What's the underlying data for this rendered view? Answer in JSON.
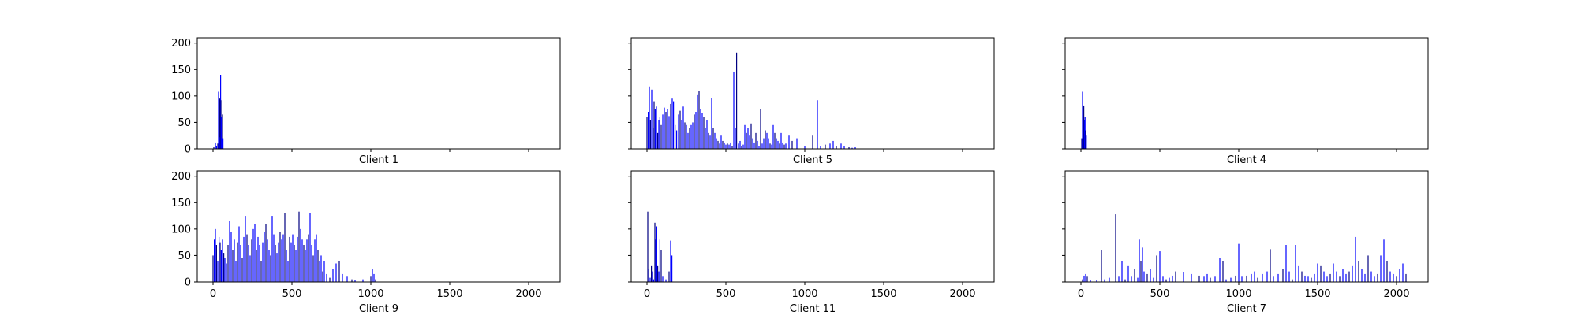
{
  "chart_data": [
    {
      "type": "bar",
      "xlabel": "Client 1",
      "xlim": [
        -100,
        2200
      ],
      "ylim": [
        0,
        210
      ],
      "xticks": [
        0,
        500,
        1000,
        1500,
        2000
      ],
      "yticks": [
        0,
        50,
        100,
        150,
        200
      ],
      "show_x_tick_labels": false,
      "show_y_tick_labels": true,
      "color": "#0000ff",
      "bars": [
        [
          5,
          3
        ],
        [
          15,
          12
        ],
        [
          22,
          6
        ],
        [
          30,
          10
        ],
        [
          35,
          108
        ],
        [
          38,
          45
        ],
        [
          42,
          95
        ],
        [
          45,
          22
        ],
        [
          48,
          140
        ],
        [
          50,
          92
        ],
        [
          53,
          60
        ],
        [
          56,
          30
        ],
        [
          60,
          65
        ],
        [
          63,
          20
        ]
      ]
    },
    {
      "type": "bar",
      "xlabel": "Client 5",
      "xlim": [
        -100,
        2200
      ],
      "ylim": [
        0,
        210
      ],
      "xticks": [
        0,
        500,
        1000,
        1500,
        2000
      ],
      "yticks": [
        0,
        50,
        100,
        150,
        200
      ],
      "show_x_tick_labels": false,
      "show_y_tick_labels": false,
      "color": "#0000ff",
      "bars": [
        [
          0,
          60
        ],
        [
          8,
          70
        ],
        [
          15,
          118
        ],
        [
          22,
          55
        ],
        [
          30,
          112
        ],
        [
          38,
          40
        ],
        [
          45,
          90
        ],
        [
          52,
          75
        ],
        [
          60,
          80
        ],
        [
          68,
          30
        ],
        [
          75,
          55
        ],
        [
          82,
          60
        ],
        [
          90,
          45
        ],
        [
          100,
          65
        ],
        [
          110,
          78
        ],
        [
          120,
          70
        ],
        [
          130,
          75
        ],
        [
          140,
          62
        ],
        [
          150,
          85
        ],
        [
          160,
          95
        ],
        [
          168,
          90
        ],
        [
          178,
          45
        ],
        [
          188,
          35
        ],
        [
          200,
          65
        ],
        [
          210,
          72
        ],
        [
          220,
          55
        ],
        [
          230,
          80
        ],
        [
          240,
          50
        ],
        [
          250,
          45
        ],
        [
          260,
          30
        ],
        [
          270,
          40
        ],
        [
          280,
          45
        ],
        [
          290,
          50
        ],
        [
          300,
          65
        ],
        [
          310,
          70
        ],
        [
          320,
          103
        ],
        [
          330,
          110
        ],
        [
          340,
          75
        ],
        [
          350,
          68
        ],
        [
          360,
          60
        ],
        [
          370,
          40
        ],
        [
          380,
          55
        ],
        [
          390,
          30
        ],
        [
          400,
          25
        ],
        [
          410,
          96
        ],
        [
          420,
          40
        ],
        [
          430,
          30
        ],
        [
          440,
          20
        ],
        [
          450,
          15
        ],
        [
          460,
          10
        ],
        [
          470,
          25
        ],
        [
          480,
          15
        ],
        [
          490,
          12
        ],
        [
          500,
          8
        ],
        [
          510,
          10
        ],
        [
          520,
          8
        ],
        [
          530,
          12
        ],
        [
          540,
          5
        ],
        [
          550,
          146
        ],
        [
          560,
          40
        ],
        [
          568,
          182
        ],
        [
          580,
          10
        ],
        [
          590,
          15
        ],
        [
          600,
          5
        ],
        [
          610,
          8
        ],
        [
          620,
          45
        ],
        [
          630,
          30
        ],
        [
          640,
          40
        ],
        [
          650,
          25
        ],
        [
          660,
          48
        ],
        [
          670,
          20
        ],
        [
          680,
          12
        ],
        [
          690,
          30
        ],
        [
          700,
          15
        ],
        [
          710,
          5
        ],
        [
          720,
          75
        ],
        [
          730,
          10
        ],
        [
          740,
          20
        ],
        [
          750,
          35
        ],
        [
          760,
          30
        ],
        [
          770,
          20
        ],
        [
          780,
          10
        ],
        [
          790,
          8
        ],
        [
          800,
          45
        ],
        [
          810,
          30
        ],
        [
          820,
          20
        ],
        [
          830,
          15
        ],
        [
          840,
          10
        ],
        [
          850,
          30
        ],
        [
          860,
          12
        ],
        [
          870,
          8
        ],
        [
          880,
          10
        ],
        [
          900,
          25
        ],
        [
          920,
          15
        ],
        [
          950,
          20
        ],
        [
          1000,
          5
        ],
        [
          1050,
          25
        ],
        [
          1080,
          92
        ],
        [
          1100,
          5
        ],
        [
          1130,
          8
        ],
        [
          1160,
          10
        ],
        [
          1180,
          15
        ],
        [
          1200,
          5
        ],
        [
          1230,
          10
        ],
        [
          1250,
          5
        ],
        [
          1280,
          3
        ],
        [
          1300,
          2
        ],
        [
          1320,
          3
        ]
      ]
    },
    {
      "type": "bar",
      "xlabel": "Client 4",
      "xlim": [
        -100,
        2200
      ],
      "ylim": [
        0,
        210
      ],
      "xticks": [
        0,
        500,
        1000,
        1500,
        2000
      ],
      "yticks": [
        0,
        50,
        100,
        150,
        200
      ],
      "show_x_tick_labels": false,
      "show_y_tick_labels": false,
      "color": "#0000ff",
      "bars": [
        [
          5,
          20
        ],
        [
          10,
          108
        ],
        [
          14,
          40
        ],
        [
          18,
          82
        ],
        [
          22,
          55
        ],
        [
          26,
          60
        ],
        [
          30,
          35
        ],
        [
          34,
          25
        ]
      ]
    },
    {
      "type": "bar",
      "xlabel": "Client 9",
      "xlim": [
        -100,
        2200
      ],
      "ylim": [
        0,
        210
      ],
      "xticks": [
        0,
        500,
        1000,
        1500,
        2000
      ],
      "yticks": [
        0,
        50,
        100,
        150,
        200
      ],
      "show_x_tick_labels": true,
      "show_y_tick_labels": true,
      "color": "#0000ff",
      "bars": [
        [
          0,
          50
        ],
        [
          8,
          80
        ],
        [
          15,
          100
        ],
        [
          22,
          70
        ],
        [
          30,
          40
        ],
        [
          38,
          85
        ],
        [
          45,
          75
        ],
        [
          52,
          60
        ],
        [
          60,
          80
        ],
        [
          68,
          55
        ],
        [
          75,
          45
        ],
        [
          85,
          35
        ],
        [
          95,
          70
        ],
        [
          105,
          115
        ],
        [
          115,
          95
        ],
        [
          125,
          60
        ],
        [
          135,
          80
        ],
        [
          145,
          40
        ],
        [
          155,
          75
        ],
        [
          165,
          105
        ],
        [
          175,
          70
        ],
        [
          185,
          45
        ],
        [
          195,
          85
        ],
        [
          205,
          125
        ],
        [
          215,
          90
        ],
        [
          225,
          70
        ],
        [
          235,
          50
        ],
        [
          245,
          80
        ],
        [
          255,
          100
        ],
        [
          265,
          110
        ],
        [
          275,
          60
        ],
        [
          285,
          85
        ],
        [
          295,
          70
        ],
        [
          305,
          40
        ],
        [
          315,
          75
        ],
        [
          325,
          95
        ],
        [
          335,
          110
        ],
        [
          345,
          80
        ],
        [
          355,
          60
        ],
        [
          365,
          50
        ],
        [
          375,
          125
        ],
        [
          385,
          90
        ],
        [
          395,
          70
        ],
        [
          405,
          55
        ],
        [
          415,
          75
        ],
        [
          425,
          95
        ],
        [
          435,
          80
        ],
        [
          445,
          90
        ],
        [
          455,
          130
        ],
        [
          465,
          60
        ],
        [
          475,
          40
        ],
        [
          485,
          85
        ],
        [
          495,
          75
        ],
        [
          505,
          90
        ],
        [
          515,
          70
        ],
        [
          525,
          60
        ],
        [
          535,
          85
        ],
        [
          545,
          133
        ],
        [
          555,
          100
        ],
        [
          565,
          80
        ],
        [
          575,
          70
        ],
        [
          585,
          60
        ],
        [
          595,
          80
        ],
        [
          605,
          90
        ],
        [
          615,
          130
        ],
        [
          625,
          70
        ],
        [
          635,
          50
        ],
        [
          645,
          80
        ],
        [
          655,
          90
        ],
        [
          665,
          60
        ],
        [
          675,
          40
        ],
        [
          685,
          50
        ],
        [
          695,
          20
        ],
        [
          705,
          40
        ],
        [
          720,
          15
        ],
        [
          740,
          8
        ],
        [
          760,
          25
        ],
        [
          780,
          35
        ],
        [
          800,
          40
        ],
        [
          820,
          15
        ],
        [
          850,
          10
        ],
        [
          880,
          5
        ],
        [
          900,
          3
        ],
        [
          950,
          5
        ],
        [
          1000,
          10
        ],
        [
          1010,
          25
        ],
        [
          1020,
          15
        ],
        [
          1030,
          5
        ]
      ]
    },
    {
      "type": "bar",
      "xlabel": "Client 11",
      "xlim": [
        -100,
        2200
      ],
      "ylim": [
        0,
        210
      ],
      "xticks": [
        0,
        500,
        1000,
        1500,
        2000
      ],
      "yticks": [
        0,
        50,
        100,
        150,
        200
      ],
      "show_x_tick_labels": true,
      "show_y_tick_labels": false,
      "color": "#0000ff",
      "bars": [
        [
          5,
          133
        ],
        [
          12,
          25
        ],
        [
          20,
          8
        ],
        [
          28,
          30
        ],
        [
          35,
          20
        ],
        [
          42,
          5
        ],
        [
          50,
          112
        ],
        [
          56,
          80
        ],
        [
          62,
          105
        ],
        [
          68,
          30
        ],
        [
          75,
          20
        ],
        [
          82,
          80
        ],
        [
          90,
          60
        ],
        [
          100,
          10
        ],
        [
          120,
          5
        ],
        [
          140,
          20
        ],
        [
          150,
          78
        ],
        [
          158,
          50
        ]
      ]
    },
    {
      "type": "bar",
      "xlabel": "Client 7",
      "xlim": [
        -100,
        2200
      ],
      "ylim": [
        0,
        210
      ],
      "xticks": [
        0,
        500,
        1000,
        1500,
        2000
      ],
      "yticks": [
        0,
        50,
        100,
        150,
        200
      ],
      "show_x_tick_labels": true,
      "show_y_tick_labels": false,
      "color": "#0000ff",
      "bars": [
        [
          10,
          5
        ],
        [
          20,
          12
        ],
        [
          30,
          15
        ],
        [
          40,
          10
        ],
        [
          60,
          4
        ],
        [
          100,
          3
        ],
        [
          130,
          60
        ],
        [
          150,
          5
        ],
        [
          180,
          8
        ],
        [
          220,
          128
        ],
        [
          240,
          10
        ],
        [
          260,
          40
        ],
        [
          280,
          5
        ],
        [
          300,
          30
        ],
        [
          320,
          10
        ],
        [
          340,
          25
        ],
        [
          360,
          8
        ],
        [
          370,
          80
        ],
        [
          380,
          40
        ],
        [
          390,
          65
        ],
        [
          400,
          20
        ],
        [
          420,
          15
        ],
        [
          440,
          25
        ],
        [
          460,
          8
        ],
        [
          480,
          50
        ],
        [
          500,
          58
        ],
        [
          520,
          10
        ],
        [
          540,
          5
        ],
        [
          560,
          8
        ],
        [
          580,
          12
        ],
        [
          600,
          20
        ],
        [
          650,
          18
        ],
        [
          700,
          15
        ],
        [
          750,
          12
        ],
        [
          780,
          10
        ],
        [
          800,
          15
        ],
        [
          820,
          8
        ],
        [
          850,
          10
        ],
        [
          880,
          45
        ],
        [
          900,
          40
        ],
        [
          920,
          5
        ],
        [
          950,
          8
        ],
        [
          980,
          12
        ],
        [
          1000,
          72
        ],
        [
          1020,
          10
        ],
        [
          1050,
          12
        ],
        [
          1080,
          15
        ],
        [
          1100,
          20
        ],
        [
          1120,
          8
        ],
        [
          1150,
          15
        ],
        [
          1180,
          20
        ],
        [
          1200,
          62
        ],
        [
          1220,
          10
        ],
        [
          1250,
          15
        ],
        [
          1280,
          25
        ],
        [
          1300,
          70
        ],
        [
          1320,
          20
        ],
        [
          1340,
          5
        ],
        [
          1360,
          70
        ],
        [
          1380,
          30
        ],
        [
          1400,
          20
        ],
        [
          1420,
          12
        ],
        [
          1440,
          10
        ],
        [
          1460,
          8
        ],
        [
          1480,
          15
        ],
        [
          1500,
          35
        ],
        [
          1520,
          30
        ],
        [
          1540,
          20
        ],
        [
          1560,
          10
        ],
        [
          1580,
          15
        ],
        [
          1600,
          35
        ],
        [
          1620,
          20
        ],
        [
          1640,
          10
        ],
        [
          1660,
          25
        ],
        [
          1680,
          15
        ],
        [
          1700,
          20
        ],
        [
          1720,
          30
        ],
        [
          1740,
          85
        ],
        [
          1760,
          40
        ],
        [
          1780,
          25
        ],
        [
          1800,
          15
        ],
        [
          1820,
          50
        ],
        [
          1840,
          20
        ],
        [
          1860,
          10
        ],
        [
          1880,
          15
        ],
        [
          1900,
          50
        ],
        [
          1920,
          80
        ],
        [
          1940,
          40
        ],
        [
          1960,
          20
        ],
        [
          1980,
          15
        ],
        [
          2000,
          10
        ],
        [
          2020,
          25
        ],
        [
          2040,
          35
        ],
        [
          2060,
          15
        ]
      ]
    }
  ]
}
